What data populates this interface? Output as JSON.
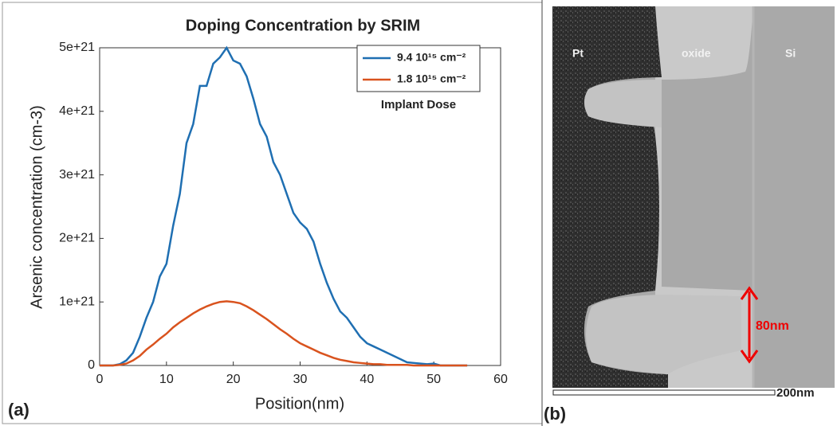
{
  "chart_data": {
    "type": "line",
    "title": "Doping Concentration by SRIM",
    "x_label": "Position(nm)",
    "y_label": "Arsenic concentration (cm-3)",
    "x": [
      0,
      1,
      2,
      3,
      4,
      5,
      6,
      7,
      8,
      9,
      10,
      11,
      12,
      13,
      14,
      15,
      16,
      17,
      18,
      19,
      20,
      21,
      22,
      23,
      24,
      25,
      26,
      27,
      28,
      29,
      30,
      31,
      32,
      33,
      34,
      35,
      36,
      37,
      38,
      39,
      40,
      41,
      42,
      43,
      44,
      45,
      46,
      47,
      48,
      49,
      50,
      51,
      52,
      53,
      54,
      55
    ],
    "series": [
      {
        "name": "9.4 10¹⁵ cm⁻²",
        "color": "#1f6fb2",
        "values": [
          0,
          0,
          0,
          2e+19,
          8e+19,
          2e+20,
          4.5e+20,
          7.5e+20,
          1e+21,
          1.4e+21,
          1.6e+21,
          2.2e+21,
          2.7e+21,
          3.5e+21,
          3.8e+21,
          4.4e+21,
          4.4e+21,
          4.75e+21,
          4.85e+21,
          5e+21,
          4.8e+21,
          4.75e+21,
          4.55e+21,
          4.2e+21,
          3.8e+21,
          3.6e+21,
          3.2e+21,
          3e+21,
          2.7e+21,
          2.4e+21,
          2.25e+21,
          2.15e+21,
          1.95e+21,
          1.6e+21,
          1.3e+21,
          1.05e+21,
          8.5e+20,
          7.5e+20,
          6e+20,
          4.5e+20,
          3.5e+20,
          3e+20,
          2.5e+20,
          2e+20,
          1.5e+20,
          1e+20,
          5e+19,
          4e+19,
          3e+19,
          2e+19,
          3e+19,
          0,
          0,
          0,
          0,
          0
        ]
      },
      {
        "name": "1.8 10¹⁵ cm⁻²",
        "color": "#d9531e",
        "values": [
          0,
          0,
          0,
          1e+19,
          3e+19,
          8e+19,
          1.5e+20,
          2.5e+20,
          3.3e+20,
          4.2e+20,
          5e+20,
          6e+20,
          6.8e+20,
          7.5e+20,
          8.2e+20,
          8.8e+20,
          9.3e+20,
          9.7e+20,
          1e+21,
          1.01e+21,
          1e+21,
          9.8e+20,
          9.3e+20,
          8.7e+20,
          8e+20,
          7.3e+20,
          6.5e+20,
          5.7e+20,
          5e+20,
          4.2e+20,
          3.5e+20,
          3e+20,
          2.5e+20,
          2e+20,
          1.6e+20,
          1.2e+20,
          9e+19,
          7e+19,
          5e+19,
          4e+19,
          3e+19,
          2e+19,
          2e+19,
          1e+19,
          1e+19,
          1e+19,
          1e+19,
          0,
          0,
          0,
          0,
          0,
          0,
          0,
          0,
          0
        ]
      }
    ],
    "legend_title": "Implant Dose",
    "legend_position": "upper right",
    "xlim": [
      0,
      60
    ],
    "xticks": [
      0,
      10,
      20,
      30,
      40,
      50,
      60
    ],
    "ylim": [
      0,
      5e+21
    ],
    "yticks": [
      0,
      1e+21,
      2e+21,
      3e+21,
      4e+21,
      5e+21
    ]
  },
  "panel_labels": [
    "(a)",
    "(b)"
  ],
  "micrograph": {
    "region_labels": [
      "Pt",
      "oxide",
      "Si"
    ],
    "dimension_label": "80nm",
    "scale_bar_label": "200nm"
  }
}
